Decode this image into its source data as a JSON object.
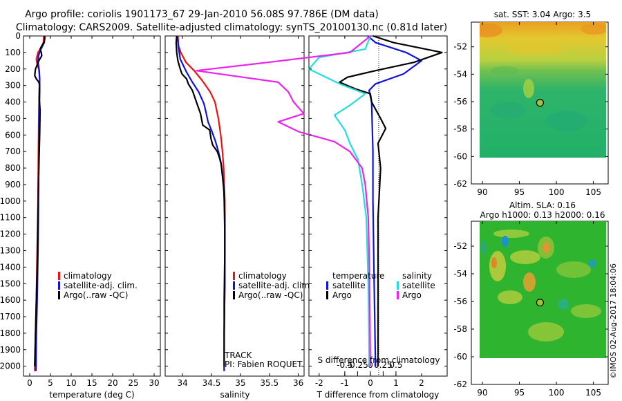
{
  "header": {
    "line1": "Argo profile: coriolis 1901173_67 29-Jan-2010 56.08S 97.786E (DM data)",
    "line2": "Climatology: CARS2009. Satellite-adjusted climatology: synTS_20100130.nc (0.81d later)"
  },
  "depth_ticks": [
    "0",
    "100",
    "200",
    "300",
    "400",
    "500",
    "600",
    "700",
    "800",
    "900",
    "1000",
    "1100",
    "1200",
    "1300",
    "1400",
    "1500",
    "1600",
    "1700",
    "1800",
    "1900",
    "2000"
  ],
  "colors": {
    "climatology": "#ee1111",
    "satellite": "#1111dd",
    "argo": "#000000",
    "sat_salinity": "#22dddd",
    "argo_salinity": "#ee22ee"
  },
  "chart_data": [
    {
      "type": "line",
      "panel": "temperature",
      "xlabel": "temperature (deg C)",
      "ylabel": "",
      "xlim": [
        -1.5,
        31.5
      ],
      "ylim": [
        2060,
        0
      ],
      "xticks": [
        0,
        5,
        10,
        15,
        20,
        25,
        30
      ],
      "xtick_labels": [
        "0",
        "5",
        "10",
        "15",
        "20",
        "25",
        "30"
      ],
      "legend": {
        "position": "lower-middle",
        "entries": [
          "climatology",
          "satellite-adj. clim.",
          "Argo(..raw -QC)"
        ]
      },
      "series": [
        {
          "name": "climatology",
          "points": [
            [
              3.4,
              0
            ],
            [
              3.3,
              40
            ],
            [
              2.8,
              70
            ],
            [
              2.0,
              100
            ],
            [
              1.6,
              140
            ],
            [
              1.8,
              170
            ],
            [
              2.2,
              200
            ],
            [
              2.4,
              260
            ],
            [
              2.3,
              320
            ],
            [
              2.2,
              450
            ],
            [
              2.1,
              700
            ],
            [
              2.0,
              1000
            ],
            [
              1.8,
              1300
            ],
            [
              1.6,
              1600
            ],
            [
              1.4,
              1800
            ],
            [
              1.2,
              2030
            ]
          ]
        },
        {
          "name": "satellite-adj. clim.",
          "points": [
            [
              3.7,
              0
            ],
            [
              3.5,
              40
            ],
            [
              2.7,
              80
            ],
            [
              2.1,
              120
            ],
            [
              2.0,
              160
            ],
            [
              2.3,
              210
            ],
            [
              2.4,
              260
            ],
            [
              2.4,
              340
            ],
            [
              2.3,
              500
            ],
            [
              2.2,
              750
            ],
            [
              2.1,
              1000
            ],
            [
              2.0,
              1300
            ],
            [
              1.8,
              1600
            ],
            [
              1.6,
              1800
            ],
            [
              1.5,
              2030
            ]
          ]
        },
        {
          "name": "Argo(..raw -QC)",
          "points": [
            [
              3.5,
              0
            ],
            [
              3.6,
              20
            ],
            [
              3.4,
              40
            ],
            [
              2.9,
              60
            ],
            [
              2.5,
              80
            ],
            [
              2.8,
              100
            ],
            [
              2.9,
              120
            ],
            [
              2.2,
              150
            ],
            [
              1.4,
              200
            ],
            [
              1.2,
              240
            ],
            [
              1.6,
              260
            ],
            [
              2.2,
              280
            ],
            [
              2.4,
              300
            ],
            [
              2.3,
              380
            ],
            [
              2.5,
              450
            ],
            [
              2.4,
              600
            ],
            [
              2.3,
              700
            ],
            [
              2.1,
              900
            ],
            [
              2.0,
              1100
            ],
            [
              1.8,
              1400
            ],
            [
              1.6,
              1600
            ],
            [
              1.4,
              1800
            ],
            [
              1.2,
              2000
            ]
          ]
        }
      ]
    },
    {
      "type": "line",
      "panel": "salinity",
      "xlabel": "salinity",
      "ylabel": "",
      "xlim": [
        33.7,
        36.1
      ],
      "ylim": [
        2060,
        0
      ],
      "xticks": [
        34,
        34.5,
        35,
        35.5,
        36
      ],
      "xtick_labels": [
        "34",
        "34.5",
        "35",
        "35.5",
        "36"
      ],
      "legend": {
        "position": "lower-middle",
        "entries": [
          "climatology",
          "satellite-adj. clim.",
          "Argo(..raw -QC)"
        ]
      },
      "annotations": [
        "TRACK",
        "PI: Fabien ROQUET"
      ],
      "series": [
        {
          "name": "climatology",
          "points": [
            [
              33.92,
              0
            ],
            [
              33.93,
              60
            ],
            [
              33.97,
              100
            ],
            [
              34.06,
              160
            ],
            [
              34.2,
              210
            ],
            [
              34.34,
              270
            ],
            [
              34.48,
              340
            ],
            [
              34.56,
              400
            ],
            [
              34.62,
              500
            ],
            [
              34.66,
              600
            ],
            [
              34.69,
              700
            ],
            [
              34.71,
              800
            ],
            [
              34.72,
              900
            ],
            [
              34.73,
              1000
            ],
            [
              34.73,
              1200
            ],
            [
              34.73,
              1500
            ],
            [
              34.72,
              1800
            ],
            [
              34.72,
              2030
            ]
          ]
        },
        {
          "name": "satellite-adj. clim.",
          "points": [
            [
              33.91,
              0
            ],
            [
              33.93,
              70
            ],
            [
              33.96,
              140
            ],
            [
              34.07,
              220
            ],
            [
              34.17,
              280
            ],
            [
              34.28,
              340
            ],
            [
              34.37,
              410
            ],
            [
              34.41,
              470
            ],
            [
              34.44,
              520
            ],
            [
              34.51,
              580
            ],
            [
              34.57,
              640
            ],
            [
              34.62,
              700
            ],
            [
              34.66,
              760
            ],
            [
              34.69,
              840
            ],
            [
              34.71,
              900
            ],
            [
              34.72,
              1000
            ],
            [
              34.73,
              1200
            ],
            [
              34.73,
              1500
            ],
            [
              34.72,
              1800
            ],
            [
              34.72,
              2030
            ]
          ]
        },
        {
          "name": "Argo(..raw -QC)",
          "points": [
            [
              33.9,
              0
            ],
            [
              33.89,
              40
            ],
            [
              33.9,
              100
            ],
            [
              33.92,
              150
            ],
            [
              33.96,
              200
            ],
            [
              33.99,
              230
            ],
            [
              34.07,
              260
            ],
            [
              34.1,
              290
            ],
            [
              34.17,
              330
            ],
            [
              34.24,
              400
            ],
            [
              34.31,
              470
            ],
            [
              34.35,
              540
            ],
            [
              34.47,
              570
            ],
            [
              34.49,
              620
            ],
            [
              34.52,
              660
            ],
            [
              34.6,
              700
            ],
            [
              34.64,
              740
            ],
            [
              34.67,
              780
            ],
            [
              34.69,
              850
            ],
            [
              34.72,
              950
            ],
            [
              34.73,
              1100
            ],
            [
              34.73,
              1300
            ],
            [
              34.72,
              1600
            ],
            [
              34.72,
              1800
            ],
            [
              34.72,
              2000
            ]
          ]
        }
      ]
    },
    {
      "type": "line",
      "panel": "difference",
      "xlabel": "T difference from climatology",
      "xlabel_top": "S difference from climatology",
      "xlim": [
        -2.4,
        3.0
      ],
      "ylim": [
        2060,
        0
      ],
      "xticks": [
        -2,
        -1,
        0,
        1,
        2
      ],
      "xtick_labels": [
        "-2",
        "-1",
        "0",
        "1",
        "2"
      ],
      "xticks_top": [
        -0.5,
        -0.25,
        0,
        0.25,
        0.5
      ],
      "xtick_labels_top": [
        "-0.5",
        "-0.25",
        "0",
        "0.25",
        "0.5"
      ],
      "legend": {
        "position": "lower-middle",
        "titles": [
          "temperature",
          "salinity"
        ],
        "entries": [
          "satellite",
          "Argo",
          "satellite",
          "Argo"
        ]
      },
      "series": [
        {
          "name": "temperature satellite",
          "points": [
            [
              -0.1,
              0
            ],
            [
              0.2,
              40
            ],
            [
              1.4,
              100
            ],
            [
              2.0,
              150
            ],
            [
              1.3,
              230
            ],
            [
              0.2,
              290
            ],
            [
              -0.05,
              330
            ],
            [
              0.05,
              400
            ],
            [
              0.1,
              700
            ],
            [
              0.1,
              1000
            ],
            [
              0.15,
              1500
            ],
            [
              0.2,
              2000
            ]
          ]
        },
        {
          "name": "temperature Argo",
          "points": [
            [
              0.1,
              0
            ],
            [
              0.9,
              40
            ],
            [
              2.8,
              100
            ],
            [
              1.7,
              160
            ],
            [
              0.2,
              210
            ],
            [
              -0.9,
              250
            ],
            [
              -1.2,
              280
            ],
            [
              -0.6,
              320
            ],
            [
              0.0,
              350
            ],
            [
              0.05,
              400
            ],
            [
              0.4,
              500
            ],
            [
              0.6,
              560
            ],
            [
              0.3,
              650
            ],
            [
              0.4,
              800
            ],
            [
              0.3,
              1100
            ],
            [
              0.3,
              1400
            ],
            [
              0.3,
              1700
            ],
            [
              0.3,
              2000
            ]
          ]
        },
        {
          "name": "salinity satellite",
          "points": [
            [
              0.0,
              0
            ],
            [
              -0.05,
              80
            ],
            [
              -0.5,
              130
            ],
            [
              -0.6,
              200
            ],
            [
              -0.3,
              290
            ],
            [
              -0.05,
              350
            ],
            [
              -0.2,
              420
            ],
            [
              -0.35,
              480
            ],
            [
              -0.25,
              570
            ],
            [
              -0.2,
              650
            ],
            [
              -0.12,
              750
            ],
            [
              -0.08,
              900
            ],
            [
              -0.04,
              1100
            ],
            [
              -0.02,
              1500
            ],
            [
              -0.01,
              2000
            ]
          ]
        },
        {
          "name": "salinity Argo",
          "points": [
            [
              0.0,
              0
            ],
            [
              -0.2,
              100
            ],
            [
              -1.0,
              160
            ],
            [
              -1.7,
              210
            ],
            [
              -0.9,
              280
            ],
            [
              -0.8,
              340
            ],
            [
              -0.75,
              400
            ],
            [
              -0.65,
              470
            ],
            [
              -0.9,
              520
            ],
            [
              -0.7,
              580
            ],
            [
              -0.35,
              640
            ],
            [
              -0.2,
              700
            ],
            [
              -0.08,
              800
            ],
            [
              -0.05,
              900
            ],
            [
              -0.02,
              1100
            ],
            [
              -0.01,
              1400
            ],
            [
              0.0,
              2000
            ]
          ]
        }
      ]
    },
    {
      "type": "heatmap",
      "panel": "sst-map",
      "title": "sat. SST: 3.04 Argo: 3.5",
      "xlim": [
        88.5,
        107
      ],
      "ylim": [
        -62,
        -50.2
      ],
      "xticks": [
        90,
        95,
        100,
        105
      ],
      "xtick_labels": [
        "90",
        "95",
        "100",
        "105"
      ],
      "yticks": [
        -52,
        -54,
        -56,
        -58,
        -60,
        -62
      ],
      "ytick_labels": [
        "-52",
        "-54",
        "-56",
        "-58",
        "-60",
        "-62"
      ],
      "marker": {
        "lon": 97.786,
        "lat": -56.08
      }
    },
    {
      "type": "heatmap",
      "panel": "sla-map",
      "title": "Altim. SLA: 0.16",
      "subtitle": "Argo h1000: 0.13 h2000: 0.16",
      "xlim": [
        88.5,
        107
      ],
      "ylim": [
        -62,
        -50.2
      ],
      "xticks": [
        90,
        95,
        100,
        105
      ],
      "xtick_labels": [
        "90",
        "95",
        "100",
        "105"
      ],
      "yticks": [
        -52,
        -54,
        -56,
        -58,
        -60,
        -62
      ],
      "ytick_labels": [
        "-52",
        "-54",
        "-56",
        "-58",
        "-60",
        "-62"
      ],
      "marker": {
        "lon": 97.786,
        "lat": -56.08
      }
    }
  ],
  "stamp": "©IMOS 02-Aug-2017 18:04:06"
}
